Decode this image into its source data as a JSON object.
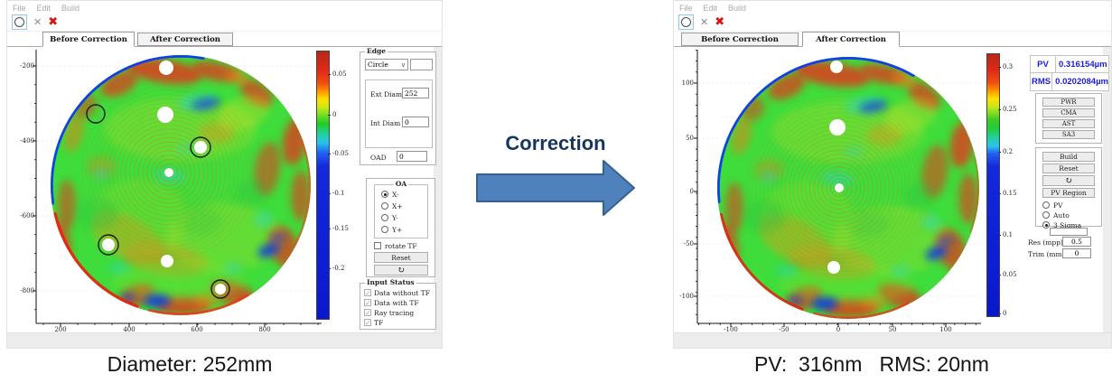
{
  "colors": {
    "readout_blue": "#1c1ce0",
    "correction_text": "#17365d",
    "arrow_fill": "#4f81bd",
    "arrow_stroke": "#36608f",
    "close_red": "#dd1111",
    "tool_sel": "#93c7ef"
  },
  "left_window": {
    "menu": [
      "File",
      "Edit",
      "Build"
    ],
    "tabs": [
      "Before Correction",
      "After Correction"
    ],
    "active_tab": "Before Correction",
    "plot": {
      "x_ticks": [
        "200",
        "400",
        "600",
        "800"
      ],
      "y_ticks": [
        "-200",
        "-400",
        "-600",
        "-800"
      ],
      "colorbar_ticks": [
        "0.05",
        "0",
        "-0.05",
        "-0.1",
        "-0.15",
        "-0.2"
      ]
    },
    "controls": {
      "edge_group": "Edge",
      "shape_select": "Circle",
      "ext_diam_label": "Ext Diam",
      "ext_diam_value": "252",
      "int_diam_label": "Int Diam",
      "int_diam_value": "0",
      "oad_label": "OAD",
      "oad_value": "0",
      "oa_group": "OA",
      "oa_options": [
        "X-",
        "X+",
        "Y-",
        "Y+"
      ],
      "oa_selected": "X-",
      "rotate_tf_label": "rotate TF",
      "reset_label": "Reset",
      "rotate_icon": "↻",
      "input_status_group": "Input Status",
      "input_status_items": [
        "Data without TF",
        "Data with TF",
        "Ray tracing",
        "TF"
      ]
    }
  },
  "correction": {
    "label": "Correction"
  },
  "right_window": {
    "menu": [
      "File",
      "Edit",
      "Build"
    ],
    "tabs": [
      "Before Correction",
      "After Correction"
    ],
    "active_tab": "After Correction",
    "plot": {
      "x_ticks": [
        "-100",
        "-50",
        "0",
        "50",
        "100"
      ],
      "y_ticks": [
        "100",
        "50",
        "0",
        "-50",
        "-100"
      ],
      "colorbar_ticks": [
        "0.3",
        "0.25",
        "0.2",
        "0.15",
        "0.1",
        "0.05",
        "0"
      ]
    },
    "readout": {
      "pv_label": "PV",
      "pv_value": "0.316154µm",
      "rms_label": "RMS",
      "rms_value": "0.0202084µm"
    },
    "controls": {
      "zernike_buttons": [
        "PWR",
        "CMA",
        "AST",
        "SA3"
      ],
      "build_label": "Build",
      "reset_label": "Reset",
      "rotate_icon": "↻",
      "pv_region_label": "PV Region",
      "range_options": [
        "PV",
        "Auto",
        "3 Sigma"
      ],
      "range_selected": "3 Sigma",
      "res_label": "Res (mpp)",
      "res_value": "0.5",
      "trim_label": "Trim (mm)",
      "trim_value": "0"
    }
  },
  "captions": {
    "left": "Diameter: 252mm",
    "right": "PV:  316nm   RMS: 20nm"
  }
}
